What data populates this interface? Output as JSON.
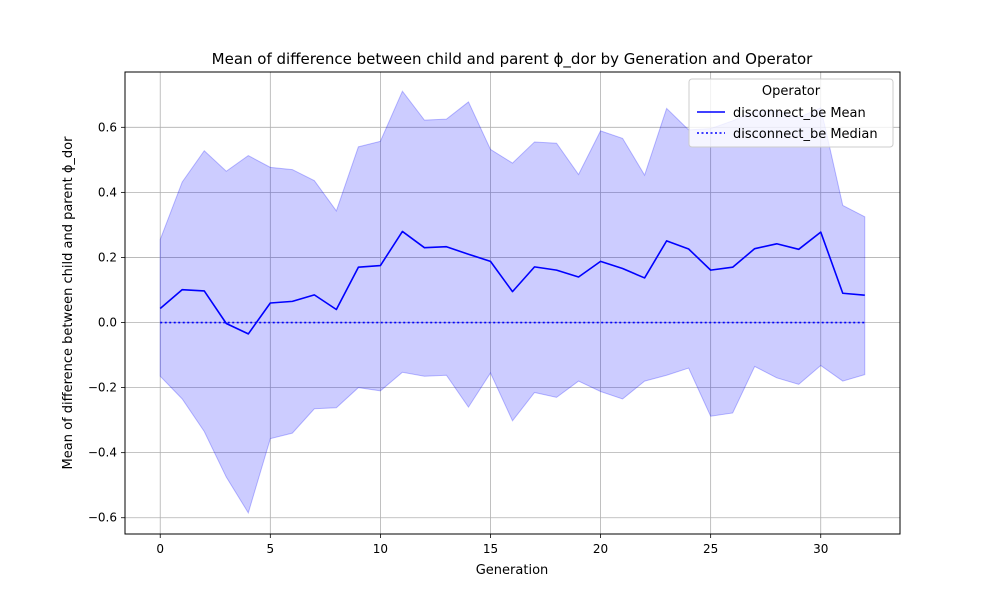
{
  "chart_data": {
    "type": "line",
    "title": "Mean of difference between child and parent ϕ_dor by Generation and Operator",
    "xlabel": "Generation",
    "ylabel": "Mean of difference between child and parent ϕ_dor",
    "xlim": [
      -1.6,
      33.6
    ],
    "ylim": [
      -0.65,
      0.77
    ],
    "xticks": [
      0,
      5,
      10,
      15,
      20,
      25,
      30
    ],
    "yticks": [
      -0.6,
      -0.4,
      -0.2,
      0.0,
      0.2,
      0.4,
      0.6
    ],
    "xtick_labels": [
      "0",
      "5",
      "10",
      "15",
      "20",
      "25",
      "30"
    ],
    "ytick_labels": [
      "−0.6",
      "−0.4",
      "−0.2",
      "0.0",
      "0.2",
      "0.4",
      "0.6"
    ],
    "grid": true,
    "legend": {
      "title": "Operator",
      "position": "top-right",
      "entries": [
        {
          "label": "disconnect_be Mean",
          "style": "solid"
        },
        {
          "label": "disconnect_be Median",
          "style": "dotted"
        }
      ]
    },
    "x": [
      0,
      1,
      2,
      3,
      4,
      5,
      6,
      7,
      8,
      9,
      10,
      11,
      12,
      13,
      14,
      15,
      16,
      17,
      18,
      19,
      20,
      21,
      22,
      23,
      24,
      25,
      26,
      27,
      28,
      29,
      30,
      31,
      32
    ],
    "series": [
      {
        "name": "disconnect_be Mean",
        "style": "solid",
        "values": [
          0.043,
          0.101,
          0.097,
          -0.003,
          -0.035,
          0.06,
          0.065,
          0.085,
          0.04,
          0.17,
          0.175,
          0.28,
          0.23,
          0.233,
          0.21,
          0.188,
          0.095,
          0.171,
          0.161,
          0.14,
          0.188,
          0.166,
          0.137,
          0.251,
          0.226,
          0.161,
          0.17,
          0.227,
          0.242,
          0.225,
          0.278,
          0.09,
          0.084
        ]
      },
      {
        "name": "disconnect_be Median",
        "style": "dotted",
        "values": [
          0,
          0,
          0,
          0,
          0,
          0,
          0,
          0,
          0,
          0,
          0,
          0,
          0,
          0,
          0,
          0,
          0,
          0,
          0,
          0,
          0,
          0,
          0,
          0,
          0,
          0,
          0,
          0,
          0,
          0,
          0,
          0,
          0
        ]
      }
    ],
    "band": {
      "upper": [
        0.255,
        0.432,
        0.528,
        0.465,
        0.513,
        0.477,
        0.47,
        0.436,
        0.343,
        0.54,
        0.557,
        0.711,
        0.622,
        0.625,
        0.678,
        0.532,
        0.49,
        0.555,
        0.551,
        0.455,
        0.589,
        0.566,
        0.453,
        0.658,
        0.592,
        0.596,
        0.62,
        0.65,
        0.65,
        0.63,
        0.66,
        0.36,
        0.325
      ],
      "lower": [
        -0.165,
        -0.235,
        -0.335,
        -0.475,
        -0.585,
        -0.357,
        -0.34,
        -0.265,
        -0.262,
        -0.2,
        -0.21,
        -0.153,
        -0.165,
        -0.162,
        -0.26,
        -0.155,
        -0.302,
        -0.215,
        -0.23,
        -0.18,
        -0.212,
        -0.235,
        -0.18,
        -0.162,
        -0.14,
        -0.288,
        -0.278,
        -0.135,
        -0.17,
        -0.19,
        -0.132,
        -0.18,
        -0.16
      ]
    },
    "colors": {
      "line": "#0000ff",
      "band_fill": "#0000ff",
      "band_fill_opacity": 0.2,
      "grid": "#b0b0b0"
    }
  }
}
